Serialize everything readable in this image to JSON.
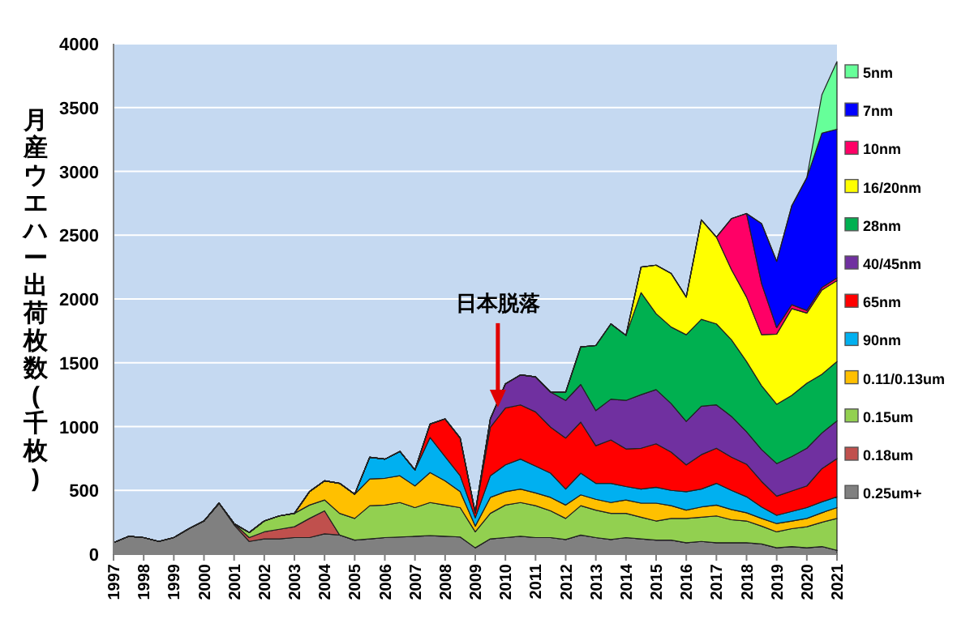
{
  "chart_data": {
    "type": "area",
    "stacked": true,
    "ylabel": "月産ウエハー出荷枚数(千枚)",
    "x": [
      1997,
      1997.5,
      1998,
      1998.5,
      1999,
      1999.5,
      2000,
      2000.5,
      2001,
      2001.5,
      2002,
      2002.5,
      2003,
      2003.5,
      2004,
      2004.5,
      2005,
      2005.5,
      2006,
      2006.5,
      2007,
      2007.5,
      2008,
      2008.5,
      2009,
      2009.5,
      2010,
      2010.5,
      2011,
      2011.5,
      2012,
      2012.5,
      2013,
      2013.5,
      2014,
      2014.5,
      2015,
      2015.5,
      2016,
      2016.5,
      2017,
      2017.5,
      2018,
      2018.5,
      2019,
      2019.5,
      2020,
      2020.5,
      2021
    ],
    "xlim": [
      1997,
      2021
    ],
    "xticks": [
      1997,
      1998,
      1999,
      2000,
      2001,
      2002,
      2003,
      2004,
      2005,
      2006,
      2007,
      2008,
      2009,
      2010,
      2011,
      2012,
      2013,
      2014,
      2015,
      2016,
      2017,
      2018,
      2019,
      2020,
      2021
    ],
    "ylim": [
      0,
      4000
    ],
    "yticks": [
      0,
      500,
      1000,
      1500,
      2000,
      2500,
      3000,
      3500,
      4000
    ],
    "grid": "y",
    "legend": "right",
    "series": [
      {
        "name": "0.25um+",
        "color": "#808080",
        "values": [
          90,
          140,
          130,
          100,
          130,
          200,
          260,
          400,
          230,
          100,
          120,
          120,
          130,
          130,
          160,
          150,
          110,
          120,
          130,
          135,
          140,
          145,
          140,
          135,
          50,
          120,
          130,
          140,
          130,
          130,
          115,
          150,
          130,
          115,
          130,
          120,
          110,
          110,
          90,
          100,
          90,
          90,
          90,
          80,
          50,
          60,
          50,
          60,
          30
        ]
      },
      {
        "name": "0.18um",
        "color": "#c0504d",
        "values": [
          0,
          0,
          0,
          0,
          0,
          0,
          0,
          0,
          10,
          30,
          55,
          75,
          85,
          150,
          180,
          0,
          0,
          0,
          0,
          0,
          0,
          0,
          0,
          0,
          0,
          0,
          0,
          0,
          0,
          0,
          0,
          0,
          0,
          0,
          0,
          0,
          0,
          0,
          0,
          0,
          0,
          0,
          0,
          0,
          0,
          0,
          0,
          0,
          0
        ]
      },
      {
        "name": "0.15um",
        "color": "#92d050",
        "values": [
          0,
          0,
          0,
          0,
          0,
          0,
          0,
          0,
          0,
          40,
          85,
          105,
          105,
          105,
          85,
          170,
          170,
          260,
          255,
          270,
          225,
          260,
          245,
          230,
          125,
          200,
          255,
          265,
          250,
          210,
          165,
          230,
          215,
          205,
          190,
          170,
          150,
          170,
          190,
          190,
          210,
          180,
          170,
          140,
          125,
          140,
          165,
          190,
          250
        ]
      },
      {
        "name": "0.11/0.13um",
        "color": "#ffc000",
        "values": [
          0,
          0,
          0,
          0,
          0,
          0,
          0,
          0,
          0,
          0,
          0,
          0,
          0,
          105,
          150,
          235,
          190,
          210,
          210,
          210,
          170,
          235,
          190,
          125,
          45,
          125,
          105,
          105,
          100,
          105,
          105,
          85,
          85,
          85,
          105,
          110,
          140,
          100,
          65,
          80,
          85,
          80,
          65,
          60,
          65,
          60,
          65,
          75,
          85
        ]
      },
      {
        "name": "90nm",
        "color": "#00b0f0",
        "values": [
          0,
          0,
          0,
          0,
          0,
          0,
          0,
          0,
          0,
          0,
          0,
          0,
          0,
          0,
          0,
          0,
          0,
          170,
          150,
          190,
          125,
          275,
          190,
          125,
          65,
          170,
          210,
          235,
          210,
          190,
          125,
          170,
          125,
          150,
          105,
          110,
          125,
          120,
          145,
          140,
          170,
          150,
          125,
          90,
          65,
          75,
          85,
          85,
          85
        ]
      },
      {
        "name": "65nm",
        "color": "#ff0000",
        "values": [
          0,
          0,
          0,
          0,
          0,
          0,
          0,
          0,
          0,
          0,
          0,
          0,
          0,
          0,
          0,
          0,
          0,
          0,
          0,
          0,
          0,
          105,
          295,
          295,
          40,
          380,
          445,
          425,
          425,
          360,
          400,
          400,
          295,
          340,
          295,
          320,
          340,
          300,
          210,
          270,
          275,
          260,
          255,
          200,
          150,
          160,
          170,
          260,
          300
        ]
      },
      {
        "name": "40/45nm",
        "color": "#7030a0",
        "values": [
          0,
          0,
          0,
          0,
          0,
          0,
          0,
          0,
          0,
          0,
          0,
          0,
          0,
          0,
          0,
          0,
          0,
          0,
          0,
          0,
          0,
          0,
          0,
          0,
          0,
          65,
          190,
          235,
          275,
          275,
          295,
          295,
          275,
          320,
          380,
          420,
          425,
          380,
          340,
          380,
          340,
          320,
          255,
          250,
          255,
          270,
          295,
          280,
          295
        ]
      },
      {
        "name": "28nm",
        "color": "#00b050",
        "values": [
          0,
          0,
          0,
          0,
          0,
          0,
          0,
          0,
          0,
          0,
          0,
          0,
          0,
          0,
          0,
          0,
          0,
          0,
          0,
          0,
          0,
          0,
          0,
          0,
          0,
          0,
          0,
          0,
          0,
          0,
          65,
          295,
          510,
          590,
          510,
          800,
          595,
          600,
          680,
          680,
          635,
          600,
          550,
          500,
          465,
          480,
          510,
          460,
          465
        ]
      },
      {
        "name": "16/20nm",
        "color": "#ffff00",
        "values": [
          0,
          0,
          0,
          0,
          0,
          0,
          0,
          0,
          0,
          0,
          0,
          0,
          0,
          0,
          0,
          0,
          0,
          0,
          0,
          0,
          0,
          0,
          0,
          0,
          0,
          0,
          0,
          0,
          0,
          0,
          0,
          0,
          0,
          0,
          0,
          200,
          380,
          420,
          295,
          780,
          680,
          550,
          505,
          400,
          550,
          680,
          550,
          660,
          635
        ]
      },
      {
        "name": "10nm",
        "color": "#ff0066",
        "values": [
          0,
          0,
          0,
          0,
          0,
          0,
          0,
          0,
          0,
          0,
          0,
          0,
          0,
          0,
          0,
          0,
          0,
          0,
          0,
          0,
          0,
          0,
          0,
          0,
          0,
          0,
          0,
          0,
          0,
          0,
          0,
          0,
          0,
          0,
          0,
          0,
          0,
          0,
          0,
          0,
          0,
          400,
          655,
          400,
          50,
          30,
          20,
          20,
          20
        ]
      },
      {
        "name": "7nm",
        "color": "#0000ff",
        "values": [
          0,
          0,
          0,
          0,
          0,
          0,
          0,
          0,
          0,
          0,
          0,
          0,
          0,
          0,
          0,
          0,
          0,
          0,
          0,
          0,
          0,
          0,
          0,
          0,
          0,
          0,
          0,
          0,
          0,
          0,
          0,
          0,
          0,
          0,
          0,
          0,
          0,
          0,
          0,
          0,
          0,
          0,
          0,
          470,
          520,
          775,
          1040,
          1210,
          1165
        ]
      },
      {
        "name": "5nm",
        "color": "#66ff99",
        "values": [
          0,
          0,
          0,
          0,
          0,
          0,
          0,
          0,
          0,
          0,
          0,
          0,
          0,
          0,
          0,
          0,
          0,
          0,
          0,
          0,
          0,
          0,
          0,
          0,
          0,
          0,
          0,
          0,
          0,
          0,
          0,
          0,
          0,
          0,
          0,
          0,
          0,
          0,
          0,
          0,
          0,
          0,
          0,
          0,
          0,
          0,
          0,
          300,
          530
        ]
      }
    ],
    "annotations": [
      {
        "text": "日本脱落",
        "x": 2009.75,
        "y": 1150
      }
    ]
  }
}
